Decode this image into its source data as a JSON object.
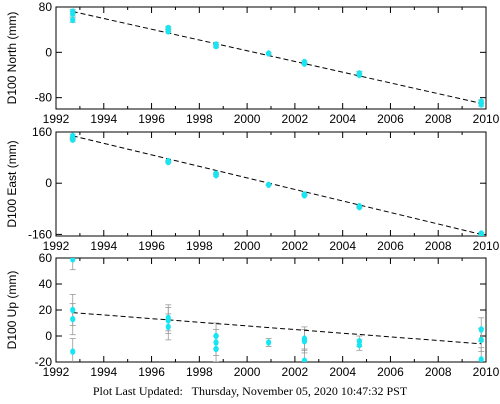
{
  "chart_data": [
    {
      "type": "scatter",
      "ylabel": "D100 North (mm)",
      "xlim": [
        1992,
        2010
      ],
      "ylim": [
        -100,
        80
      ],
      "xticks": [
        1992,
        1994,
        1996,
        1998,
        2000,
        2002,
        2004,
        2006,
        2008,
        2010
      ],
      "yticks": [
        80,
        0,
        -80
      ],
      "grid": false,
      "trend": {
        "x": [
          1992.7,
          2009.8
        ],
        "y": [
          72,
          -90
        ]
      },
      "points": [
        {
          "x": 1992.7,
          "y": 72,
          "err": 4
        },
        {
          "x": 1992.7,
          "y": 68,
          "err": 4
        },
        {
          "x": 1992.7,
          "y": 57,
          "err": 4
        },
        {
          "x": 1996.7,
          "y": 43,
          "err": 3
        },
        {
          "x": 1996.7,
          "y": 40,
          "err": 3
        },
        {
          "x": 1996.7,
          "y": 37,
          "err": 3
        },
        {
          "x": 1998.7,
          "y": 14,
          "err": 3
        },
        {
          "x": 1998.7,
          "y": 11,
          "err": 3
        },
        {
          "x": 2000.9,
          "y": -2,
          "err": 2
        },
        {
          "x": 2002.4,
          "y": -17,
          "err": 2
        },
        {
          "x": 2002.4,
          "y": -20,
          "err": 2
        },
        {
          "x": 2004.7,
          "y": -37,
          "err": 3
        },
        {
          "x": 2004.7,
          "y": -40,
          "err": 3
        },
        {
          "x": 2009.8,
          "y": -87,
          "err": 3
        },
        {
          "x": 2009.8,
          "y": -92,
          "err": 3
        }
      ]
    },
    {
      "type": "scatter",
      "ylabel": "D100 East (mm)",
      "xlim": [
        1992,
        2010
      ],
      "ylim": [
        -165,
        160
      ],
      "xticks": [
        1992,
        1994,
        1996,
        1998,
        2000,
        2002,
        2004,
        2006,
        2008,
        2010
      ],
      "yticks": [
        160,
        0,
        -160
      ],
      "grid": false,
      "trend": {
        "x": [
          1992.7,
          2009.8
        ],
        "y": [
          148,
          -160
        ]
      },
      "points": [
        {
          "x": 1992.7,
          "y": 148,
          "err": 4
        },
        {
          "x": 1992.7,
          "y": 140,
          "err": 4
        },
        {
          "x": 1992.7,
          "y": 136,
          "err": 4
        },
        {
          "x": 1996.7,
          "y": 69,
          "err": 3
        },
        {
          "x": 1996.7,
          "y": 66,
          "err": 3
        },
        {
          "x": 1998.7,
          "y": 30,
          "err": 3
        },
        {
          "x": 1998.7,
          "y": 25,
          "err": 3
        },
        {
          "x": 2000.9,
          "y": -5,
          "err": 2
        },
        {
          "x": 2002.4,
          "y": -35,
          "err": 2
        },
        {
          "x": 2002.4,
          "y": -38,
          "err": 2
        },
        {
          "x": 2004.7,
          "y": -72,
          "err": 3
        },
        {
          "x": 2004.7,
          "y": -75,
          "err": 3
        },
        {
          "x": 2009.8,
          "y": -157,
          "err": 3
        },
        {
          "x": 2009.8,
          "y": -163,
          "err": 3
        }
      ]
    },
    {
      "type": "scatter",
      "ylabel": "D100 Up (mm)",
      "xlim": [
        1992,
        2010
      ],
      "ylim": [
        -20,
        60
      ],
      "xticks": [
        1992,
        1994,
        1996,
        1998,
        2000,
        2002,
        2004,
        2006,
        2008,
        2010
      ],
      "yticks": [
        60,
        40,
        20,
        0,
        -20
      ],
      "grid": false,
      "trend": {
        "x": [
          1992.7,
          2009.8
        ],
        "y": [
          18,
          -6
        ]
      },
      "points": [
        {
          "x": 1992.7,
          "y": 59,
          "err": 8
        },
        {
          "x": 1992.7,
          "y": 20,
          "err": 12
        },
        {
          "x": 1992.7,
          "y": 13,
          "err": 12
        },
        {
          "x": 1992.7,
          "y": -12,
          "err": 10
        },
        {
          "x": 1996.7,
          "y": 14,
          "err": 10
        },
        {
          "x": 1996.7,
          "y": 12,
          "err": 10
        },
        {
          "x": 1996.7,
          "y": 7,
          "err": 10
        },
        {
          "x": 1998.7,
          "y": 0,
          "err": 10
        },
        {
          "x": 1998.7,
          "y": -5,
          "err": 10
        },
        {
          "x": 1998.7,
          "y": -10,
          "err": 10
        },
        {
          "x": 2000.9,
          "y": -5,
          "err": 3
        },
        {
          "x": 2002.4,
          "y": -2,
          "err": 9
        },
        {
          "x": 2002.4,
          "y": -4,
          "err": 9
        },
        {
          "x": 2002.4,
          "y": -19,
          "err": 9
        },
        {
          "x": 2004.7,
          "y": -4,
          "err": 4
        },
        {
          "x": 2004.7,
          "y": -7,
          "err": 4
        },
        {
          "x": 2009.8,
          "y": 5,
          "err": 9
        },
        {
          "x": 2009.8,
          "y": -3,
          "err": 9
        },
        {
          "x": 2009.8,
          "y": -18,
          "err": 9
        }
      ]
    }
  ],
  "colors": {
    "point": "#17e6f2",
    "errorbar": "#9a9a9a",
    "trend": "#000000",
    "axis": "#000000"
  },
  "footer": {
    "label": "Plot Last Updated:",
    "timestamp": "Thursday, November 05, 2020 10:47:32 PST"
  }
}
